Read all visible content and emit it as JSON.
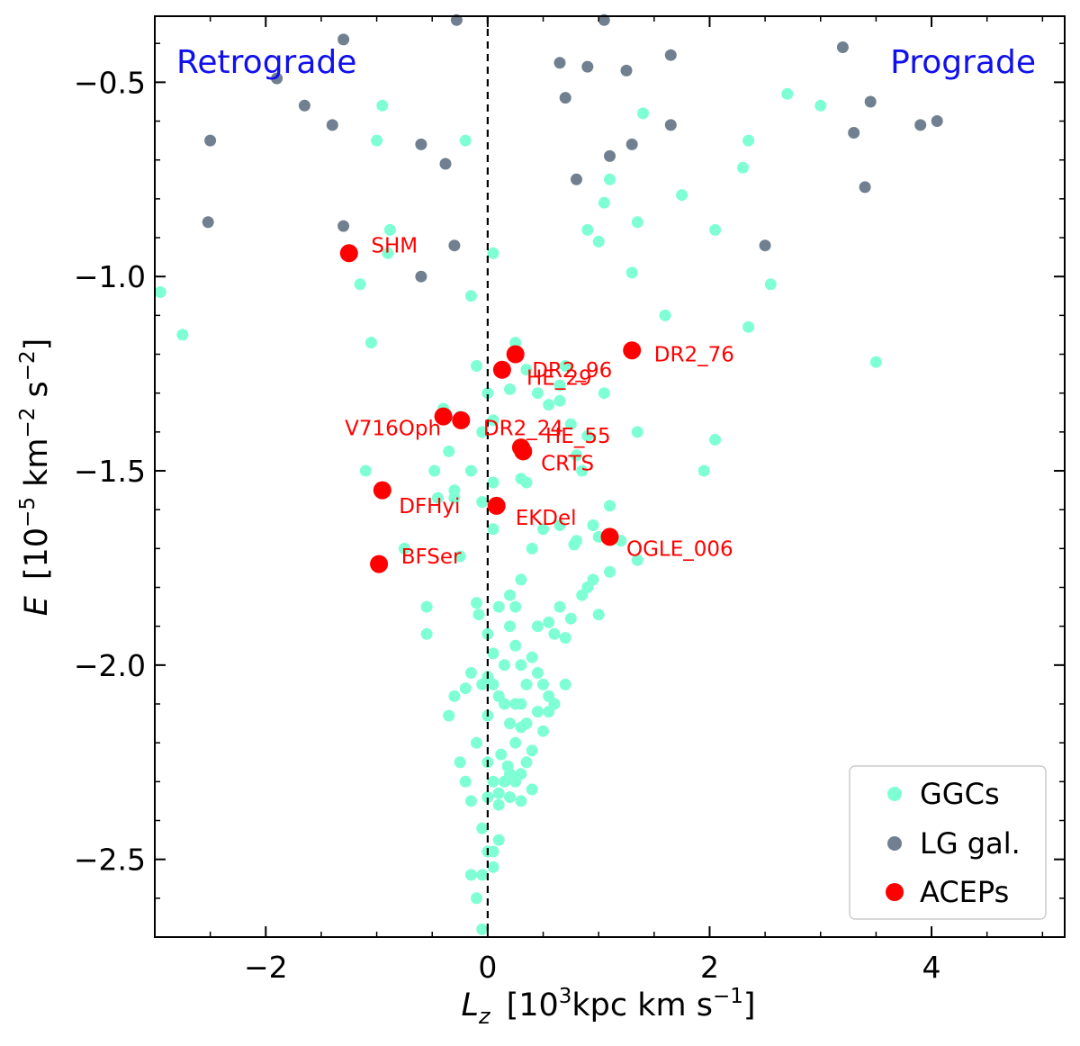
{
  "chart_data": {
    "type": "scatter",
    "x_axis": {
      "label_main": "L",
      "label_sub": "z",
      "label_rest_pre": "[10",
      "label_sup": "3",
      "label_rest_mid": "kpc km s",
      "label_sup2": "−1",
      "label_rest_post": "]",
      "range": [
        -3.0,
        5.2
      ],
      "ticks": [
        -2,
        0,
        2,
        4
      ],
      "tick_labels": [
        "−2",
        "0",
        "2",
        "4"
      ]
    },
    "y_axis": {
      "label_main": "E",
      "label_rest_pre": "[10",
      "label_sup": "−5",
      "label_rest_mid": " km",
      "label_sup2": "−2",
      "label_rest_mid2": " s",
      "label_sup3": "−2",
      "label_rest_post": "]",
      "range": [
        -2.7,
        -0.33
      ],
      "ticks": [
        -2.5,
        -2.0,
        -1.5,
        -1.0,
        -0.5
      ],
      "tick_labels": [
        "−2.5",
        "−2.0",
        "−1.5",
        "−1.0",
        "−0.5"
      ]
    },
    "vline_x": 0,
    "corner_labels": {
      "left": "Retrograde",
      "right": "Prograde",
      "color": "#1010ee"
    },
    "legend": {
      "position": "bottom-right",
      "entries": [
        {
          "label": "GGCs",
          "color": "#7fffd4"
        },
        {
          "label": "LG gal.",
          "color": "#708090"
        },
        {
          "label": "ACEPs",
          "color": "#ff0000"
        }
      ]
    },
    "series": [
      {
        "name": "GGCs",
        "color": "#7fffd4",
        "points": [
          [
            -2.95,
            -1.04
          ],
          [
            -2.75,
            -1.15
          ],
          [
            -1.15,
            -1.02
          ],
          [
            -1.1,
            -1.5
          ],
          [
            -1.05,
            -1.17
          ],
          [
            -0.88,
            -0.88
          ],
          [
            -0.9,
            -0.94
          ],
          [
            -0.95,
            -0.56
          ],
          [
            -1.0,
            -0.65
          ],
          [
            -0.2,
            -0.65
          ],
          [
            -0.75,
            -1.7
          ],
          [
            -0.55,
            -1.85
          ],
          [
            -0.55,
            -1.92
          ],
          [
            -0.48,
            -1.5
          ],
          [
            -0.45,
            -1.57
          ],
          [
            -0.4,
            -1.34
          ],
          [
            -0.35,
            -1.45
          ],
          [
            -0.3,
            -1.57
          ],
          [
            -0.3,
            -1.55
          ],
          [
            -0.25,
            -1.72
          ],
          [
            -0.25,
            -1.36
          ],
          [
            -0.15,
            -1.05
          ],
          [
            0.05,
            -0.94
          ],
          [
            -0.15,
            -1.5
          ],
          [
            -0.1,
            -1.23
          ],
          [
            -0.05,
            -1.4
          ],
          [
            0.0,
            -1.3
          ],
          [
            0.05,
            -1.37
          ],
          [
            0.2,
            -1.29
          ],
          [
            0.25,
            -1.17
          ],
          [
            0.35,
            -1.24
          ],
          [
            0.45,
            -1.3
          ],
          [
            0.55,
            -1.33
          ],
          [
            0.65,
            -1.28
          ],
          [
            0.65,
            -1.32
          ],
          [
            0.7,
            -1.23
          ],
          [
            0.75,
            -1.38
          ],
          [
            0.8,
            -1.46
          ],
          [
            0.85,
            -1.5
          ],
          [
            0.9,
            -1.41
          ],
          [
            1.05,
            -1.3
          ],
          [
            1.35,
            -1.4
          ],
          [
            1.1,
            -1.59
          ],
          [
            0.95,
            -1.64
          ],
          [
            1.0,
            -1.67
          ],
          [
            0.8,
            -1.68
          ],
          [
            0.78,
            -1.69
          ],
          [
            0.65,
            -1.64
          ],
          [
            0.5,
            -1.65
          ],
          [
            0.4,
            -1.7
          ],
          [
            0.3,
            -1.52
          ],
          [
            0.35,
            -1.53
          ],
          [
            0.05,
            -1.53
          ],
          [
            -0.05,
            -1.58
          ],
          [
            0.05,
            -1.65
          ],
          [
            0.1,
            -1.85
          ],
          [
            0.2,
            -1.82
          ],
          [
            0.25,
            -1.85
          ],
          [
            0.3,
            -1.78
          ],
          [
            0.45,
            -1.9
          ],
          [
            0.55,
            -1.89
          ],
          [
            0.6,
            -1.92
          ],
          [
            0.65,
            -1.85
          ],
          [
            0.7,
            -1.93
          ],
          [
            0.75,
            -1.88
          ],
          [
            0.85,
            -1.82
          ],
          [
            0.9,
            -1.8
          ],
          [
            0.95,
            -1.78
          ],
          [
            1.0,
            -1.87
          ],
          [
            1.1,
            -1.76
          ],
          [
            1.2,
            -1.68
          ],
          [
            1.35,
            -1.73
          ],
          [
            -0.1,
            -1.84
          ],
          [
            -0.08,
            -1.87
          ],
          [
            0.0,
            -1.92
          ],
          [
            0.05,
            -1.97
          ],
          [
            0.15,
            -2.0
          ],
          [
            0.2,
            -1.9
          ],
          [
            0.25,
            -1.95
          ],
          [
            0.3,
            -2.0
          ],
          [
            0.35,
            -2.05
          ],
          [
            0.4,
            -1.98
          ],
          [
            0.45,
            -2.02
          ],
          [
            0.5,
            -2.05
          ],
          [
            0.55,
            -2.08
          ],
          [
            0.6,
            -2.1
          ],
          [
            0.7,
            -2.05
          ],
          [
            0.45,
            -2.12
          ],
          [
            0.3,
            -2.1
          ],
          [
            0.35,
            -2.15
          ],
          [
            0.25,
            -2.1
          ],
          [
            0.2,
            -2.15
          ],
          [
            0.15,
            -2.1
          ],
          [
            0.1,
            -2.08
          ],
          [
            0.05,
            -2.05
          ],
          [
            0.0,
            -2.03
          ],
          [
            -0.05,
            -2.05
          ],
          [
            -0.15,
            -2.02
          ],
          [
            -0.2,
            -2.06
          ],
          [
            -0.3,
            -2.08
          ],
          [
            -0.35,
            -2.13
          ],
          [
            -0.1,
            -2.2
          ],
          [
            0.0,
            -2.25
          ],
          [
            0.05,
            -2.3
          ],
          [
            0.1,
            -2.33
          ],
          [
            0.15,
            -2.3
          ],
          [
            0.2,
            -2.28
          ],
          [
            0.25,
            -2.3
          ],
          [
            0.3,
            -2.28
          ],
          [
            0.35,
            -2.25
          ],
          [
            0.25,
            -2.2
          ],
          [
            0.3,
            -2.16
          ],
          [
            0.4,
            -2.22
          ],
          [
            0.5,
            -2.17
          ],
          [
            0.55,
            -2.12
          ],
          [
            0.4,
            -2.32
          ],
          [
            0.3,
            -2.35
          ],
          [
            0.2,
            -2.34
          ],
          [
            0.1,
            -2.36
          ],
          [
            0.0,
            -2.34
          ],
          [
            -0.15,
            -2.35
          ],
          [
            -0.2,
            -2.3
          ],
          [
            -0.05,
            -2.42
          ],
          [
            0.0,
            -2.48
          ],
          [
            0.05,
            -2.48
          ],
          [
            0.1,
            -2.45
          ],
          [
            -0.05,
            -2.54
          ],
          [
            -0.1,
            -2.6
          ],
          [
            0.05,
            -2.52
          ],
          [
            -0.15,
            -2.54
          ],
          [
            -0.05,
            -2.68
          ],
          [
            -0.25,
            -2.25
          ],
          [
            0.0,
            -2.13
          ],
          [
            0.12,
            -2.23
          ],
          [
            0.18,
            -2.26
          ],
          [
            0.9,
            -0.88
          ],
          [
            1.0,
            -0.91
          ],
          [
            1.05,
            -0.81
          ],
          [
            1.35,
            -0.86
          ],
          [
            1.3,
            -0.99
          ],
          [
            1.4,
            -0.58
          ],
          [
            1.75,
            -0.79
          ],
          [
            1.6,
            -1.1
          ],
          [
            2.05,
            -0.88
          ],
          [
            2.35,
            -0.65
          ],
          [
            2.3,
            -0.72
          ],
          [
            2.55,
            -1.02
          ],
          [
            2.35,
            -1.13
          ],
          [
            2.05,
            -1.42
          ],
          [
            1.95,
            -1.5
          ],
          [
            2.7,
            -0.53
          ],
          [
            3.0,
            -0.56
          ],
          [
            3.5,
            -1.22
          ],
          [
            1.1,
            -0.75
          ]
        ]
      },
      {
        "name": "LG gal.",
        "color": "#708090",
        "points": [
          [
            -1.9,
            -0.49
          ],
          [
            -1.65,
            -0.56
          ],
          [
            -1.3,
            -0.39
          ],
          [
            -1.4,
            -0.61
          ],
          [
            -2.5,
            -0.65
          ],
          [
            -2.52,
            -0.86
          ],
          [
            -1.3,
            -0.87
          ],
          [
            -0.6,
            -0.66
          ],
          [
            -0.6,
            -1.0
          ],
          [
            -0.38,
            -0.71
          ],
          [
            -0.3,
            -0.92
          ],
          [
            -0.28,
            -0.34
          ],
          [
            0.65,
            -0.45
          ],
          [
            0.9,
            -0.46
          ],
          [
            0.7,
            -0.54
          ],
          [
            1.05,
            -0.34
          ],
          [
            1.25,
            -0.47
          ],
          [
            1.65,
            -0.43
          ],
          [
            1.65,
            -0.61
          ],
          [
            1.1,
            -0.69
          ],
          [
            1.3,
            -0.66
          ],
          [
            0.8,
            -0.75
          ],
          [
            2.5,
            -0.92
          ],
          [
            3.2,
            -0.41
          ],
          [
            3.3,
            -0.63
          ],
          [
            3.45,
            -0.55
          ],
          [
            3.4,
            -0.77
          ],
          [
            3.9,
            -0.61
          ],
          [
            4.05,
            -0.6
          ]
        ]
      },
      {
        "name": "ACEPs",
        "color": "#ff0000",
        "points": [
          [
            -1.25,
            -0.94
          ],
          [
            0.25,
            -1.2
          ],
          [
            0.13,
            -1.24
          ],
          [
            1.3,
            -1.19
          ],
          [
            -0.4,
            -1.36
          ],
          [
            -0.24,
            -1.37
          ],
          [
            0.3,
            -1.44
          ],
          [
            0.32,
            -1.45
          ],
          [
            -0.95,
            -1.55
          ],
          [
            0.08,
            -1.59
          ],
          [
            1.1,
            -1.67
          ],
          [
            -0.98,
            -1.74
          ]
        ]
      }
    ],
    "annotations": [
      {
        "text": "SHM",
        "x": -1.25,
        "y": -0.94,
        "anchor": "start",
        "dx": 0.2,
        "dy": 0.02
      },
      {
        "text": "DR2_96",
        "x": 0.25,
        "y": -1.2,
        "anchor": "start",
        "dx": 0.15,
        "dy": -0.04
      },
      {
        "text": "HE_29",
        "x": 0.13,
        "y": -1.24,
        "anchor": "start",
        "dx": 0.22,
        "dy": -0.02
      },
      {
        "text": "DR2_76",
        "x": 1.3,
        "y": -1.19,
        "anchor": "start",
        "dx": 0.2,
        "dy": -0.01
      },
      {
        "text": "V716Oph",
        "x": -0.4,
        "y": -1.36,
        "anchor": "end",
        "dx": -0.02,
        "dy": -0.03
      },
      {
        "text": "DR2_24",
        "x": -0.24,
        "y": -1.37,
        "anchor": "start",
        "dx": 0.2,
        "dy": -0.02
      },
      {
        "text": "CRTS",
        "x": 0.3,
        "y": -1.44,
        "anchor": "start",
        "dx": 0.18,
        "dy": -0.04
      },
      {
        "text": "HE_55",
        "x": 0.32,
        "y": -1.45,
        "anchor": "start",
        "dx": 0.2,
        "dy": 0.04
      },
      {
        "text": "DFHyi",
        "x": -0.95,
        "y": -1.55,
        "anchor": "start",
        "dx": 0.15,
        "dy": -0.04
      },
      {
        "text": "EKDel",
        "x": 0.08,
        "y": -1.59,
        "anchor": "start",
        "dx": 0.17,
        "dy": -0.03
      },
      {
        "text": "OGLE_006",
        "x": 1.1,
        "y": -1.67,
        "anchor": "start",
        "dx": 0.15,
        "dy": -0.03
      },
      {
        "text": "BFSer",
        "x": -0.98,
        "y": -1.74,
        "anchor": "start",
        "dx": 0.2,
        "dy": 0.02
      }
    ]
  }
}
